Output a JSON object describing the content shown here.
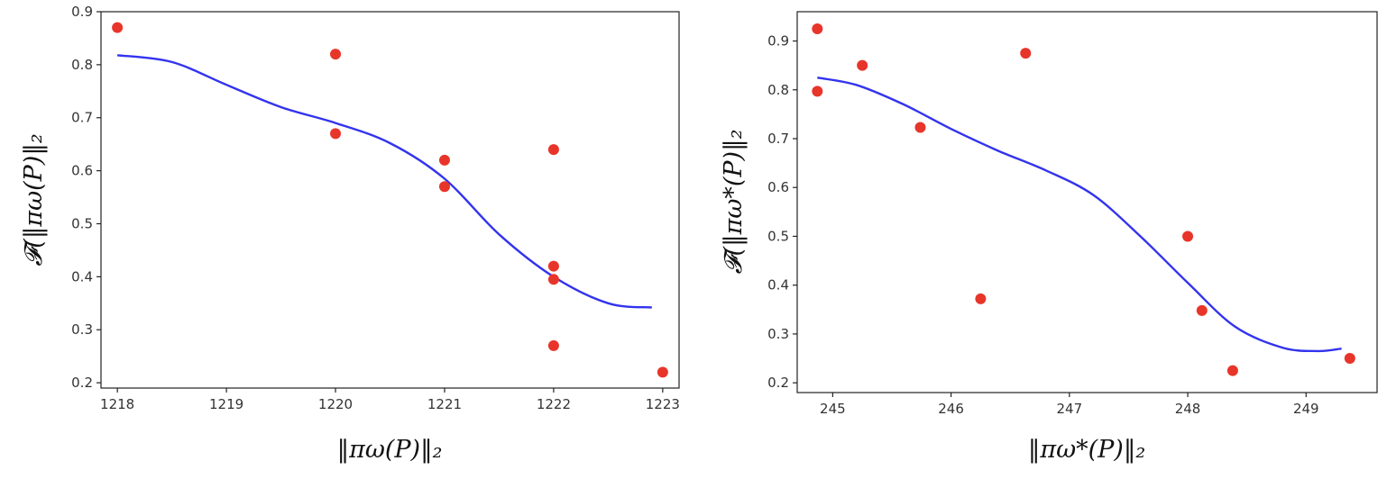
{
  "chart_data": [
    {
      "type": "scatter",
      "title": "",
      "xlabel": "‖πω(P)‖₂",
      "ylabel": "𝓕(‖πω(P)‖₂",
      "xlim": [
        1217.85,
        1223.15
      ],
      "ylim": [
        0.19,
        0.9
      ],
      "xticks": [
        1218,
        1219,
        1220,
        1221,
        1222,
        1223
      ],
      "yticks": [
        0.2,
        0.3,
        0.4,
        0.5,
        0.6,
        0.7,
        0.8,
        0.9
      ],
      "xtick_labels": [
        "1218",
        "1219",
        "1220",
        "1221",
        "1222",
        "1223"
      ],
      "ytick_labels": [
        "0.2",
        "0.3",
        "0.4",
        "0.5",
        "0.6",
        "0.7",
        "0.8",
        "0.9"
      ],
      "grid": false,
      "legend": false,
      "colors": {
        "points": "#e8352a",
        "fit": "#3333ee"
      },
      "points": {
        "x": [
          1218,
          1220,
          1220,
          1221,
          1221,
          1222,
          1222,
          1222,
          1222,
          1223
        ],
        "y": [
          0.87,
          0.82,
          0.67,
          0.62,
          0.57,
          0.64,
          0.42,
          0.395,
          0.27,
          0.22
        ]
      },
      "fit_curve": {
        "x": [
          1218,
          1218.5,
          1219,
          1219.5,
          1220,
          1220.5,
          1221,
          1221.5,
          1222,
          1222.5,
          1222.9
        ],
        "y": [
          0.818,
          0.805,
          0.762,
          0.72,
          0.69,
          0.652,
          0.585,
          0.48,
          0.4,
          0.35,
          0.342
        ]
      }
    },
    {
      "type": "scatter",
      "title": "",
      "xlabel": "‖πω*(P)‖₂",
      "ylabel": "𝓕(‖πω*(P)‖₂",
      "xlim": [
        244.7,
        249.6
      ],
      "ylim": [
        0.18,
        0.96
      ],
      "xticks": [
        245,
        246,
        247,
        248,
        249
      ],
      "yticks": [
        0.2,
        0.3,
        0.4,
        0.5,
        0.6,
        0.7,
        0.8,
        0.9
      ],
      "xtick_labels": [
        "245",
        "246",
        "247",
        "248",
        "249"
      ],
      "ytick_labels": [
        "0.2",
        "0.3",
        "0.4",
        "0.5",
        "0.6",
        "0.7",
        "0.8",
        "0.9"
      ],
      "grid": false,
      "legend": false,
      "colors": {
        "points": "#e8352a",
        "fit": "#3333ee"
      },
      "points": {
        "x": [
          244.87,
          244.87,
          245.25,
          245.74,
          246.25,
          246.63,
          248.0,
          248.12,
          248.38,
          249.37
        ],
        "y": [
          0.925,
          0.797,
          0.85,
          0.723,
          0.372,
          0.875,
          0.5,
          0.348,
          0.225,
          0.25
        ]
      },
      "fit_curve": {
        "x": [
          244.87,
          245.2,
          245.6,
          246.0,
          246.4,
          246.8,
          247.2,
          247.6,
          248.0,
          248.4,
          248.8,
          249.1,
          249.3
        ],
        "y": [
          0.825,
          0.81,
          0.77,
          0.72,
          0.675,
          0.635,
          0.585,
          0.5,
          0.405,
          0.315,
          0.272,
          0.265,
          0.27
        ]
      }
    }
  ]
}
